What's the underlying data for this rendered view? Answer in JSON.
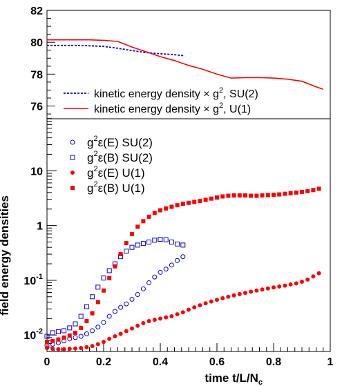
{
  "chart_data": [
    {
      "type": "line",
      "panel": "top",
      "ylim": [
        75.2,
        82
      ],
      "y_ticks": [
        {
          "value": 76,
          "label": "76"
        },
        {
          "value": 78,
          "label": "78"
        },
        {
          "value": 80,
          "label": "80"
        },
        {
          "value": 82,
          "label": "82"
        }
      ],
      "xlim": [
        0,
        1.0
      ],
      "legend_position": "bottom-left",
      "series": [
        {
          "name": "kinetic energy density × g², SU(2)",
          "legend_main": "kinetic energy density",
          "legend_tail": ", SU(2)",
          "color": "#0000cc",
          "style": "dotted",
          "x": [
            0,
            0.05,
            0.1,
            0.15,
            0.2,
            0.25,
            0.3,
            0.35,
            0.4,
            0.45,
            0.485
          ],
          "y": [
            79.8,
            79.8,
            79.8,
            79.78,
            79.74,
            79.62,
            79.48,
            79.35,
            79.28,
            79.22,
            79.15
          ]
        },
        {
          "name": "kinetic energy density × g², U(1)",
          "legend_main": "kinetic energy density",
          "legend_tail": ", U(1)",
          "color": "#ff0000",
          "style": "solid",
          "x": [
            0,
            0.05,
            0.1,
            0.15,
            0.2,
            0.25,
            0.3,
            0.35,
            0.4,
            0.45,
            0.5,
            0.55,
            0.6,
            0.65,
            0.7,
            0.75,
            0.8,
            0.85,
            0.9,
            0.95,
            0.975
          ],
          "y": [
            80.15,
            80.15,
            80.15,
            80.15,
            80.12,
            80.05,
            79.7,
            79.4,
            79.1,
            78.85,
            78.55,
            78.3,
            78.0,
            77.75,
            77.78,
            77.78,
            77.75,
            77.68,
            77.55,
            77.2,
            77.05
          ]
        }
      ]
    },
    {
      "type": "scatter",
      "panel": "bottom",
      "xlabel": "time t/L/N",
      "xlabel_sub": "c",
      "ylabel": "field energy densities",
      "xlim": [
        0,
        1.0
      ],
      "ylim_log10": [
        -2.3,
        1.95
      ],
      "y_scale": "log",
      "x_ticks": [
        {
          "value": 0,
          "label": "0"
        },
        {
          "value": 0.2,
          "label": "0.2"
        },
        {
          "value": 0.4,
          "label": "0.4"
        },
        {
          "value": 0.6,
          "label": "0.6"
        },
        {
          "value": 0.8,
          "label": "0.8"
        },
        {
          "value": 1.0,
          "label": "1"
        }
      ],
      "y_ticks": [
        {
          "value": 0.01,
          "base": "10",
          "exp": "-2"
        },
        {
          "value": 0.1,
          "base": "10",
          "exp": "-1"
        },
        {
          "value": 1,
          "base": "1",
          "exp": ""
        },
        {
          "value": 10,
          "base": "10",
          "exp": ""
        }
      ],
      "legend_position": "top-left",
      "series": [
        {
          "name": "g²ε(E) SU(2)",
          "legend_label": "ε(E) SU(2)",
          "color": "#0000cc",
          "marker": "open-circle",
          "x": [
            0.0,
            0.02,
            0.04,
            0.06,
            0.08,
            0.1,
            0.12,
            0.14,
            0.16,
            0.18,
            0.2,
            0.22,
            0.24,
            0.26,
            0.28,
            0.3,
            0.32,
            0.34,
            0.36,
            0.38,
            0.4,
            0.42,
            0.44,
            0.46,
            0.48
          ],
          "y": [
            0.0065,
            0.0068,
            0.0072,
            0.0078,
            0.0085,
            0.009,
            0.0095,
            0.0105,
            0.012,
            0.014,
            0.017,
            0.022,
            0.027,
            0.032,
            0.037,
            0.045,
            0.055,
            0.07,
            0.09,
            0.115,
            0.14,
            0.16,
            0.19,
            0.23,
            0.27
          ]
        },
        {
          "name": "g²ε(B) SU(2)",
          "legend_label": "ε(B) SU(2)",
          "color": "#0000cc",
          "marker": "open-square",
          "x": [
            0.0,
            0.02,
            0.04,
            0.06,
            0.08,
            0.1,
            0.12,
            0.14,
            0.16,
            0.18,
            0.2,
            0.22,
            0.24,
            0.26,
            0.28,
            0.3,
            0.32,
            0.34,
            0.36,
            0.38,
            0.4,
            0.42,
            0.44,
            0.46,
            0.48
          ],
          "y": [
            0.0095,
            0.011,
            0.0115,
            0.012,
            0.0135,
            0.016,
            0.022,
            0.033,
            0.05,
            0.075,
            0.11,
            0.15,
            0.2,
            0.27,
            0.34,
            0.4,
            0.44,
            0.47,
            0.5,
            0.54,
            0.56,
            0.55,
            0.5,
            0.46,
            0.44
          ]
        },
        {
          "name": "g²ε(E) U(1)",
          "legend_label": "ε(E) U(1)",
          "color": "#ff0000",
          "marker": "filled-circle",
          "x": [
            0.0,
            0.02,
            0.04,
            0.06,
            0.08,
            0.1,
            0.12,
            0.14,
            0.16,
            0.18,
            0.2,
            0.22,
            0.24,
            0.26,
            0.28,
            0.3,
            0.32,
            0.34,
            0.36,
            0.38,
            0.4,
            0.42,
            0.44,
            0.46,
            0.48,
            0.5,
            0.52,
            0.54,
            0.56,
            0.58,
            0.6,
            0.62,
            0.64,
            0.66,
            0.68,
            0.7,
            0.72,
            0.74,
            0.76,
            0.78,
            0.8,
            0.82,
            0.84,
            0.86,
            0.88,
            0.9,
            0.92,
            0.94,
            0.96
          ],
          "y": [
            0.0058,
            0.0056,
            0.0055,
            0.0055,
            0.0056,
            0.0057,
            0.0058,
            0.006,
            0.0063,
            0.0068,
            0.0075,
            0.0085,
            0.0095,
            0.0105,
            0.0118,
            0.0132,
            0.0148,
            0.0165,
            0.018,
            0.019,
            0.02,
            0.021,
            0.022,
            0.024,
            0.026,
            0.029,
            0.032,
            0.035,
            0.038,
            0.041,
            0.044,
            0.047,
            0.05,
            0.053,
            0.056,
            0.059,
            0.062,
            0.065,
            0.068,
            0.071,
            0.074,
            0.077,
            0.08,
            0.084,
            0.088,
            0.094,
            0.103,
            0.118,
            0.135
          ]
        },
        {
          "name": "g²ε(B) U(1)",
          "legend_label": "ε(B) U(1)",
          "color": "#ff0000",
          "marker": "filled-square",
          "x": [
            0.0,
            0.02,
            0.04,
            0.06,
            0.08,
            0.1,
            0.12,
            0.14,
            0.16,
            0.18,
            0.2,
            0.22,
            0.24,
            0.26,
            0.28,
            0.3,
            0.32,
            0.34,
            0.36,
            0.38,
            0.4,
            0.42,
            0.44,
            0.46,
            0.48,
            0.5,
            0.52,
            0.54,
            0.56,
            0.58,
            0.6,
            0.62,
            0.64,
            0.66,
            0.68,
            0.7,
            0.72,
            0.74,
            0.76,
            0.78,
            0.8,
            0.82,
            0.84,
            0.86,
            0.88,
            0.9,
            0.92,
            0.94,
            0.96
          ],
          "y": [
            0.0075,
            0.0078,
            0.0083,
            0.009,
            0.0098,
            0.011,
            0.0135,
            0.018,
            0.025,
            0.04,
            0.065,
            0.11,
            0.18,
            0.3,
            0.48,
            0.7,
            0.95,
            1.2,
            1.45,
            1.7,
            1.9,
            2.05,
            2.2,
            2.35,
            2.5,
            2.6,
            2.7,
            2.8,
            2.95,
            3.1,
            3.25,
            3.4,
            3.5,
            3.55,
            3.55,
            3.55,
            3.5,
            3.5,
            3.55,
            3.6,
            3.65,
            3.7,
            3.8,
            3.9,
            4.0,
            4.1,
            4.25,
            4.45,
            4.7
          ]
        }
      ]
    }
  ]
}
